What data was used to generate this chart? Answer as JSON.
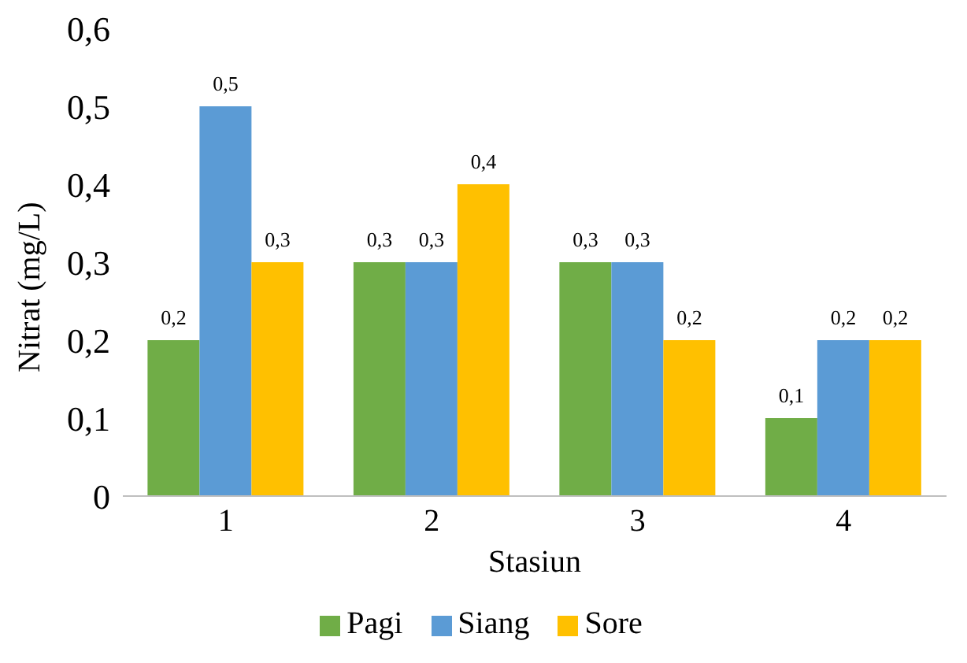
{
  "chart_data": {
    "type": "bar",
    "xlabel": "Stasiun",
    "ylabel": "Nitrat (mg/L)",
    "categories": [
      "1",
      "2",
      "3",
      "4"
    ],
    "series": [
      {
        "name": "Pagi",
        "color": "#70ad47",
        "values": [
          0.2,
          0.3,
          0.3,
          0.1
        ],
        "value_labels": [
          "0,2",
          "0,3",
          "0,3",
          "0,1"
        ]
      },
      {
        "name": "Siang",
        "color": "#5b9bd5",
        "values": [
          0.5,
          0.3,
          0.3,
          0.2
        ],
        "value_labels": [
          "0,5",
          "0,3",
          "0,3",
          "0,2"
        ]
      },
      {
        "name": "Sore",
        "color": "#ffc000",
        "values": [
          0.3,
          0.4,
          0.2,
          0.2
        ],
        "value_labels": [
          "0,3",
          "0,4",
          "0,2",
          "0,2"
        ]
      }
    ],
    "ylim": [
      0,
      0.6
    ],
    "yticks": [
      {
        "value": 0,
        "label": "0"
      },
      {
        "value": 0.1,
        "label": "0,1"
      },
      {
        "value": 0.2,
        "label": "0,2"
      },
      {
        "value": 0.3,
        "label": "0,3"
      },
      {
        "value": 0.4,
        "label": "0,4"
      },
      {
        "value": 0.5,
        "label": "0,5"
      },
      {
        "value": 0.6,
        "label": "0,6"
      }
    ],
    "grid": false,
    "legend": "bottom"
  }
}
